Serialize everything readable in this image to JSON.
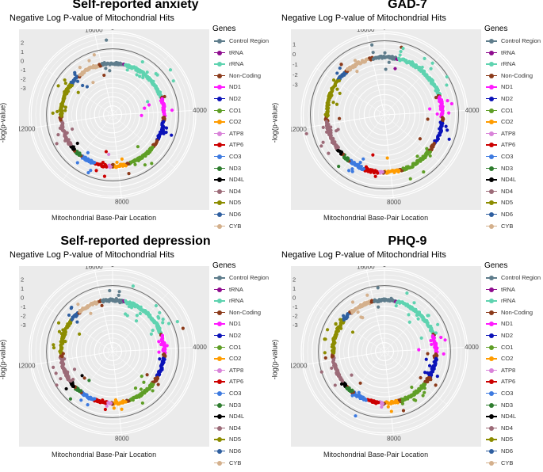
{
  "chart_data": [
    {
      "type": "scatter",
      "title": "Self-reported anxiety",
      "subtitle": "Negative Log P-value of Mitochondrial Hits",
      "xlabel": "Mitochondrial Base-Pair Location",
      "ylabel": "-log(p-value)",
      "theta_ticks": [
        0,
        4000,
        8000,
        12000,
        16000
      ],
      "r_ticks": [
        2,
        1,
        0,
        -1,
        -2,
        -3
      ],
      "r_range": [
        -6,
        3.2
      ],
      "reference_circle": 1.3,
      "seed": 11,
      "outliers": [
        [
          2400,
          2.1
        ],
        [
          2800,
          1.7
        ],
        [
          6500,
          0.9
        ],
        [
          3600,
          -2.4
        ],
        [
          12500,
          0.6
        ],
        [
          13600,
          -0.1
        ],
        [
          9500,
          -0.2
        ],
        [
          16350,
          2.3
        ],
        [
          4200,
          -2.8
        ],
        [
          11500,
          0.4
        ]
      ]
    },
    {
      "type": "scatter",
      "title": "GAD-7",
      "subtitle": "Negative Log P-value of Mitochondrial Hits",
      "xlabel": "Mitochondrial Base-Pair Location",
      "ylabel": "-log(p-value)",
      "theta_ticks": [
        0,
        4000,
        8000,
        12000,
        16000
      ],
      "r_ticks": [
        1,
        0,
        -1,
        -2,
        -3
      ],
      "r_range": [
        -6,
        2.2
      ],
      "reference_circle": 1.3,
      "seed": 23,
      "outliers": [
        [
          11800,
          1.9
        ],
        [
          10200,
          0.8
        ],
        [
          4100,
          -0.8
        ],
        [
          3800,
          -1.5
        ],
        [
          2700,
          1.2
        ],
        [
          9700,
          0.2
        ],
        [
          13000,
          -1.2
        ],
        [
          16100,
          1.0
        ]
      ]
    },
    {
      "type": "scatter",
      "title": "Self-reported depression",
      "subtitle": "Negative Log P-value of Mitochondrial Hits",
      "xlabel": "Mitochondrial Base-Pair Location",
      "ylabel": "-log(p-value)",
      "theta_ticks": [
        0,
        4000,
        8000,
        12000,
        16000
      ],
      "r_ticks": [
        2,
        1,
        0,
        -1,
        -2,
        -3
      ],
      "r_range": [
        -6,
        3.2
      ],
      "reference_circle": 1.3,
      "seed": 37,
      "outliers": [
        [
          3300,
          2.2
        ],
        [
          3000,
          1.9
        ],
        [
          800,
          1.6
        ],
        [
          2000,
          1.0
        ],
        [
          11000,
          1.2
        ],
        [
          10200,
          1.0
        ],
        [
          9800,
          0.4
        ],
        [
          12600,
          0.5
        ],
        [
          5700,
          -1.4
        ]
      ]
    },
    {
      "type": "scatter",
      "title": "PHQ-9",
      "subtitle": "Negative Log P-value of Mitochondrial Hits",
      "xlabel": "Mitochondrial Base-Pair Location",
      "ylabel": "-log(p-value)",
      "theta_ticks": [
        0,
        4000,
        8000,
        12000,
        16000
      ],
      "r_ticks": [
        2,
        1,
        0,
        -1,
        -2,
        -3
      ],
      "r_range": [
        -6,
        3.2
      ],
      "reference_circle": 1.3,
      "seed": 51,
      "outliers": [
        [
          9400,
          1.8
        ],
        [
          11600,
          1.3
        ],
        [
          2900,
          0.6
        ],
        [
          7400,
          0.1
        ],
        [
          4000,
          -2.2
        ],
        [
          13800,
          0.2
        ],
        [
          16300,
          1.1
        ]
      ]
    }
  ],
  "legend": {
    "title": "Genes",
    "items": [
      {
        "label": "Control Region",
        "color": "#5f7d8c",
        "start": 16024,
        "end": 16569,
        "start2": 0,
        "end2": 576
      },
      {
        "label": "tRNA",
        "color": "#8e0c8e",
        "start": 577,
        "end": 647
      },
      {
        "label": "rRNA",
        "color": "#5fd3b0",
        "start": 648,
        "end": 3229
      },
      {
        "label": "Non-Coding",
        "color": "#8b3a1a",
        "start": 3230,
        "end": 3306
      },
      {
        "label": "ND1",
        "color": "#ff1aff",
        "start": 3307,
        "end": 4262
      },
      {
        "label": "ND2",
        "color": "#0b12b8",
        "start": 4470,
        "end": 5511
      },
      {
        "label": "CO1",
        "color": "#5f9e26",
        "start": 5904,
        "end": 7445
      },
      {
        "label": "CO2",
        "color": "#ff9c00",
        "start": 7586,
        "end": 8269
      },
      {
        "label": "ATP8",
        "color": "#d983d9",
        "start": 8366,
        "end": 8572
      },
      {
        "label": "ATP6",
        "color": "#cc0000",
        "start": 8527,
        "end": 9207
      },
      {
        "label": "CO3",
        "color": "#3d7ae0",
        "start": 9207,
        "end": 9990
      },
      {
        "label": "ND3",
        "color": "#2f7d2f",
        "start": 10059,
        "end": 10404
      },
      {
        "label": "ND4L",
        "color": "#000000",
        "start": 10470,
        "end": 10766
      },
      {
        "label": "ND4",
        "color": "#9c6b78",
        "start": 10760,
        "end": 12137
      },
      {
        "label": "ND5",
        "color": "#8c8c00",
        "start": 12337,
        "end": 14148
      },
      {
        "label": "ND6",
        "color": "#2f5fa0",
        "start": 14149,
        "end": 14673
      },
      {
        "label": "CYB",
        "color": "#d4b08c",
        "start": 14747,
        "end": 15887
      }
    ]
  }
}
